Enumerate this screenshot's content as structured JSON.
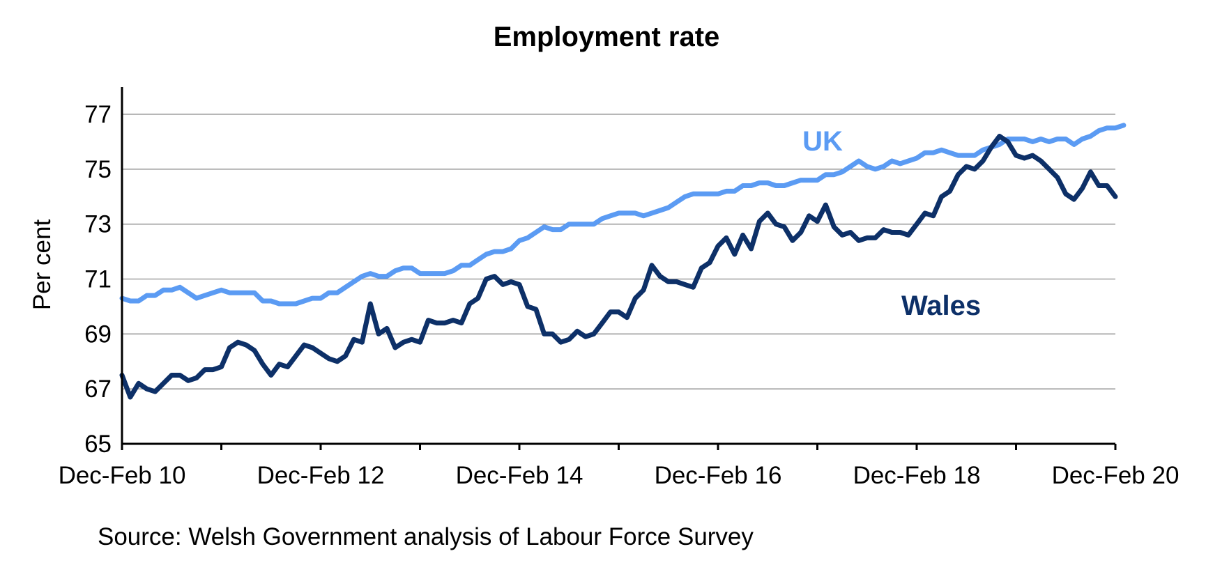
{
  "chart_data": {
    "type": "line",
    "title": "Employment rate",
    "ylabel": "Per cent",
    "xlabel": "",
    "ylim": [
      65,
      78
    ],
    "yticks": [
      65,
      67,
      69,
      71,
      73,
      75,
      77
    ],
    "xtick_labels": [
      "Dec-Feb 10",
      "Dec-Feb 12",
      "Dec-Feb 14",
      "Dec-Feb 16",
      "Dec-Feb 18",
      "Dec-Feb 20"
    ],
    "x_start": "Dec-Feb 10",
    "x_end": "Dec-Feb 20",
    "periods": 121,
    "grid": true,
    "series": [
      {
        "name": "UK",
        "color": "#5b9bf3",
        "values": [
          70.3,
          70.2,
          70.2,
          70.4,
          70.4,
          70.6,
          70.6,
          70.7,
          70.5,
          70.3,
          70.4,
          70.5,
          70.6,
          70.5,
          70.5,
          70.5,
          70.5,
          70.2,
          70.2,
          70.1,
          70.1,
          70.1,
          70.2,
          70.3,
          70.3,
          70.5,
          70.5,
          70.7,
          70.9,
          71.1,
          71.2,
          71.1,
          71.1,
          71.3,
          71.4,
          71.4,
          71.2,
          71.2,
          71.2,
          71.2,
          71.3,
          71.5,
          71.5,
          71.7,
          71.9,
          72.0,
          72.0,
          72.1,
          72.4,
          72.5,
          72.7,
          72.9,
          72.8,
          72.8,
          73.0,
          73.0,
          73.0,
          73.0,
          73.2,
          73.3,
          73.4,
          73.4,
          73.4,
          73.3,
          73.4,
          73.5,
          73.6,
          73.8,
          74.0,
          74.1,
          74.1,
          74.1,
          74.1,
          74.2,
          74.2,
          74.4,
          74.4,
          74.5,
          74.5,
          74.4,
          74.4,
          74.5,
          74.6,
          74.6,
          74.6,
          74.8,
          74.8,
          74.9,
          75.1,
          75.3,
          75.1,
          75.0,
          75.1,
          75.3,
          75.2,
          75.3,
          75.4,
          75.6,
          75.6,
          75.7,
          75.6,
          75.5,
          75.5,
          75.5,
          75.7,
          75.8,
          75.9,
          76.1,
          76.1,
          76.1,
          76.0,
          76.1,
          76.0,
          76.1,
          76.1,
          75.9,
          76.1,
          76.2,
          76.4,
          76.5,
          76.5,
          76.6
        ],
        "label_position": "upper middle"
      },
      {
        "name": "Wales",
        "color": "#0d3068",
        "values": [
          67.5,
          66.7,
          67.2,
          67.0,
          66.9,
          67.2,
          67.5,
          67.5,
          67.3,
          67.4,
          67.7,
          67.7,
          67.8,
          68.5,
          68.7,
          68.6,
          68.4,
          67.9,
          67.5,
          67.9,
          67.8,
          68.2,
          68.6,
          68.5,
          68.3,
          68.1,
          68.0,
          68.2,
          68.8,
          68.7,
          70.1,
          69.0,
          69.2,
          68.5,
          68.7,
          68.8,
          68.7,
          69.5,
          69.4,
          69.4,
          69.5,
          69.4,
          70.1,
          70.3,
          71.0,
          71.1,
          70.8,
          70.9,
          70.8,
          70.0,
          69.9,
          69.0,
          69.0,
          68.7,
          68.8,
          69.1,
          68.9,
          69.0,
          69.4,
          69.8,
          69.8,
          69.6,
          70.3,
          70.6,
          71.5,
          71.1,
          70.9,
          70.9,
          70.8,
          70.7,
          71.4,
          71.6,
          72.2,
          72.5,
          71.9,
          72.6,
          72.1,
          73.1,
          73.4,
          73.0,
          72.9,
          72.4,
          72.7,
          73.3,
          73.1,
          73.7,
          72.9,
          72.6,
          72.7,
          72.4,
          72.5,
          72.5,
          72.8,
          72.7,
          72.7,
          72.6,
          73.0,
          73.4,
          73.3,
          74.0,
          74.2,
          74.8,
          75.1,
          75.0,
          75.3,
          75.8,
          76.2,
          76.0,
          75.5,
          75.4,
          75.5,
          75.3,
          75.0,
          74.7,
          74.1,
          73.9,
          74.3,
          74.9,
          74.4,
          74.4,
          74.0
        ],
        "label_position": "middle right"
      }
    ],
    "source": "Source: Welsh Government analysis of Labour Force Survey"
  }
}
